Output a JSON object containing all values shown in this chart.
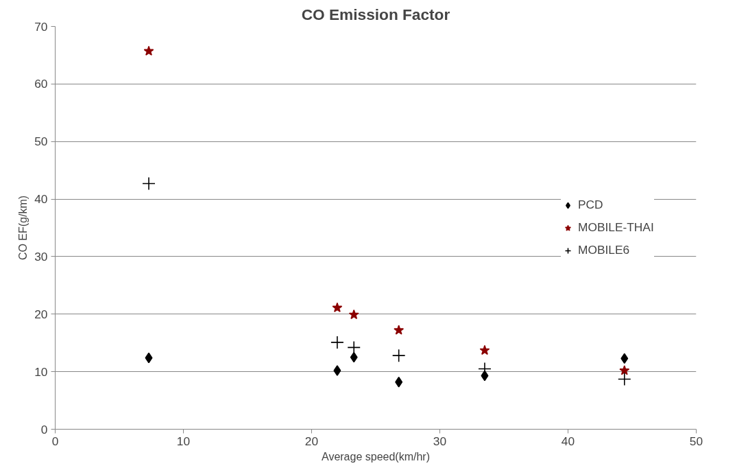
{
  "chart_data": {
    "type": "scatter",
    "title": "CO Emission Factor",
    "xlabel": "Average speed(km/hr)",
    "ylabel": "CO EF(g/km)",
    "xlim": [
      0,
      50
    ],
    "xticks": [
      0,
      10,
      20,
      30,
      40,
      50
    ],
    "ylim": [
      0,
      70
    ],
    "yticks": [
      0,
      10,
      20,
      30,
      40,
      50,
      60,
      70
    ],
    "grid": "y",
    "legend": "right",
    "series": [
      {
        "name": "PCD",
        "color": "#000000",
        "marker": "diamond",
        "x": [
          7.3,
          22.0,
          23.3,
          26.8,
          33.5,
          44.4
        ],
        "values": [
          12.4,
          10.2,
          12.5,
          8.2,
          9.3,
          12.3
        ]
      },
      {
        "name": "MOBILE-THAI",
        "color": "#8b0000",
        "marker": "star",
        "x": [
          7.3,
          22.0,
          23.3,
          26.8,
          33.5,
          44.4
        ],
        "values": [
          65.7,
          21.1,
          19.9,
          17.2,
          13.7,
          10.2
        ]
      },
      {
        "name": "MOBILE6",
        "color": "#000000",
        "marker": "cross",
        "x": [
          7.3,
          22.0,
          23.3,
          26.8,
          33.5,
          44.4
        ],
        "values": [
          42.7,
          15.1,
          14.2,
          12.8,
          10.5,
          8.7
        ]
      }
    ]
  }
}
